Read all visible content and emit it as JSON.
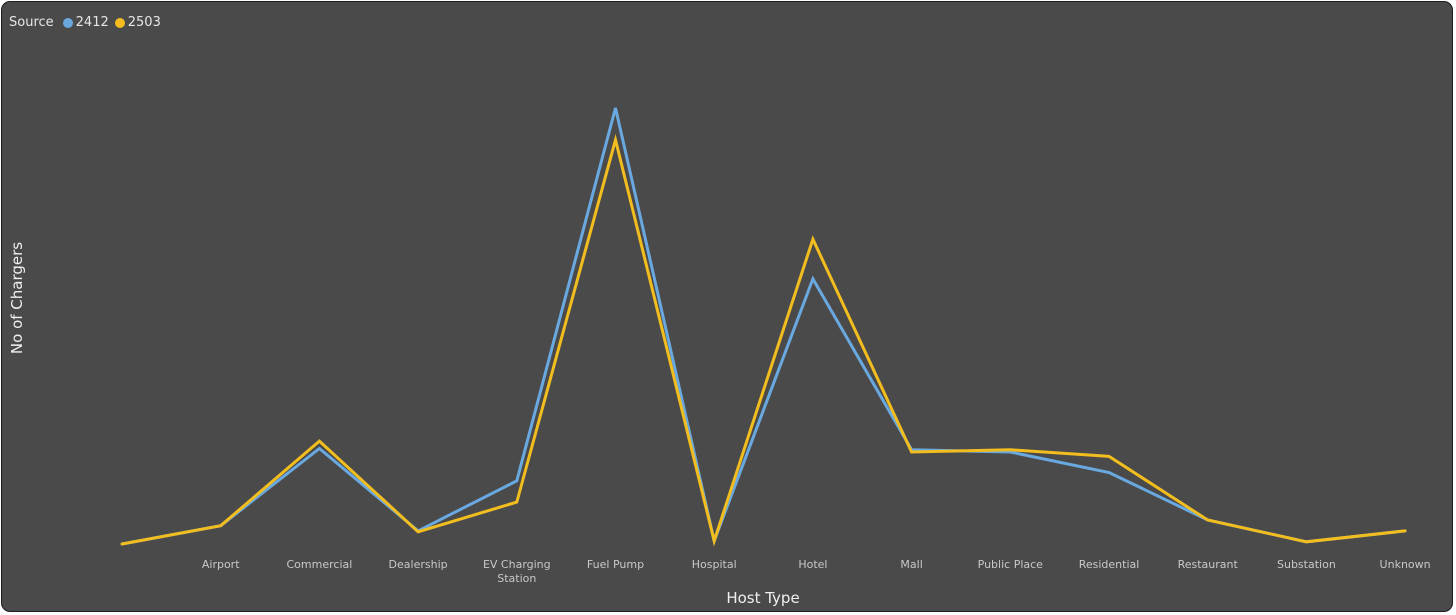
{
  "legend": {
    "title": "Source"
  },
  "colors": {
    "2412": "#6aa9e0",
    "2503": "#f2bd1e"
  },
  "chart_data": {
    "type": "line",
    "title": "",
    "xlabel": "Host Type",
    "ylabel": "No of Chargers",
    "ylim": [
      0,
      100
    ],
    "grid": false,
    "legend_position": "top-left",
    "x": [
      "",
      "Airport",
      "Commercial",
      "Dealership",
      "EV Charging Station",
      "Fuel Pump",
      "Hospital",
      "Hotel",
      "Mall",
      "Public Place",
      "Residential",
      "Restaurant",
      "Substation",
      "Unknown"
    ],
    "series": [
      {
        "name": "2412",
        "values": [
          0,
          4.2,
          21.9,
          3.0,
          14.5,
          100,
          0.7,
          60.8,
          21.6,
          21.1,
          16.4,
          5.5,
          0.5,
          3.0
        ]
      },
      {
        "name": "2503",
        "values": [
          0,
          4.2,
          23.6,
          2.8,
          9.6,
          92.7,
          0.7,
          69.9,
          21.1,
          21.6,
          20.1,
          5.5,
          0.5,
          3.0
        ]
      }
    ]
  }
}
